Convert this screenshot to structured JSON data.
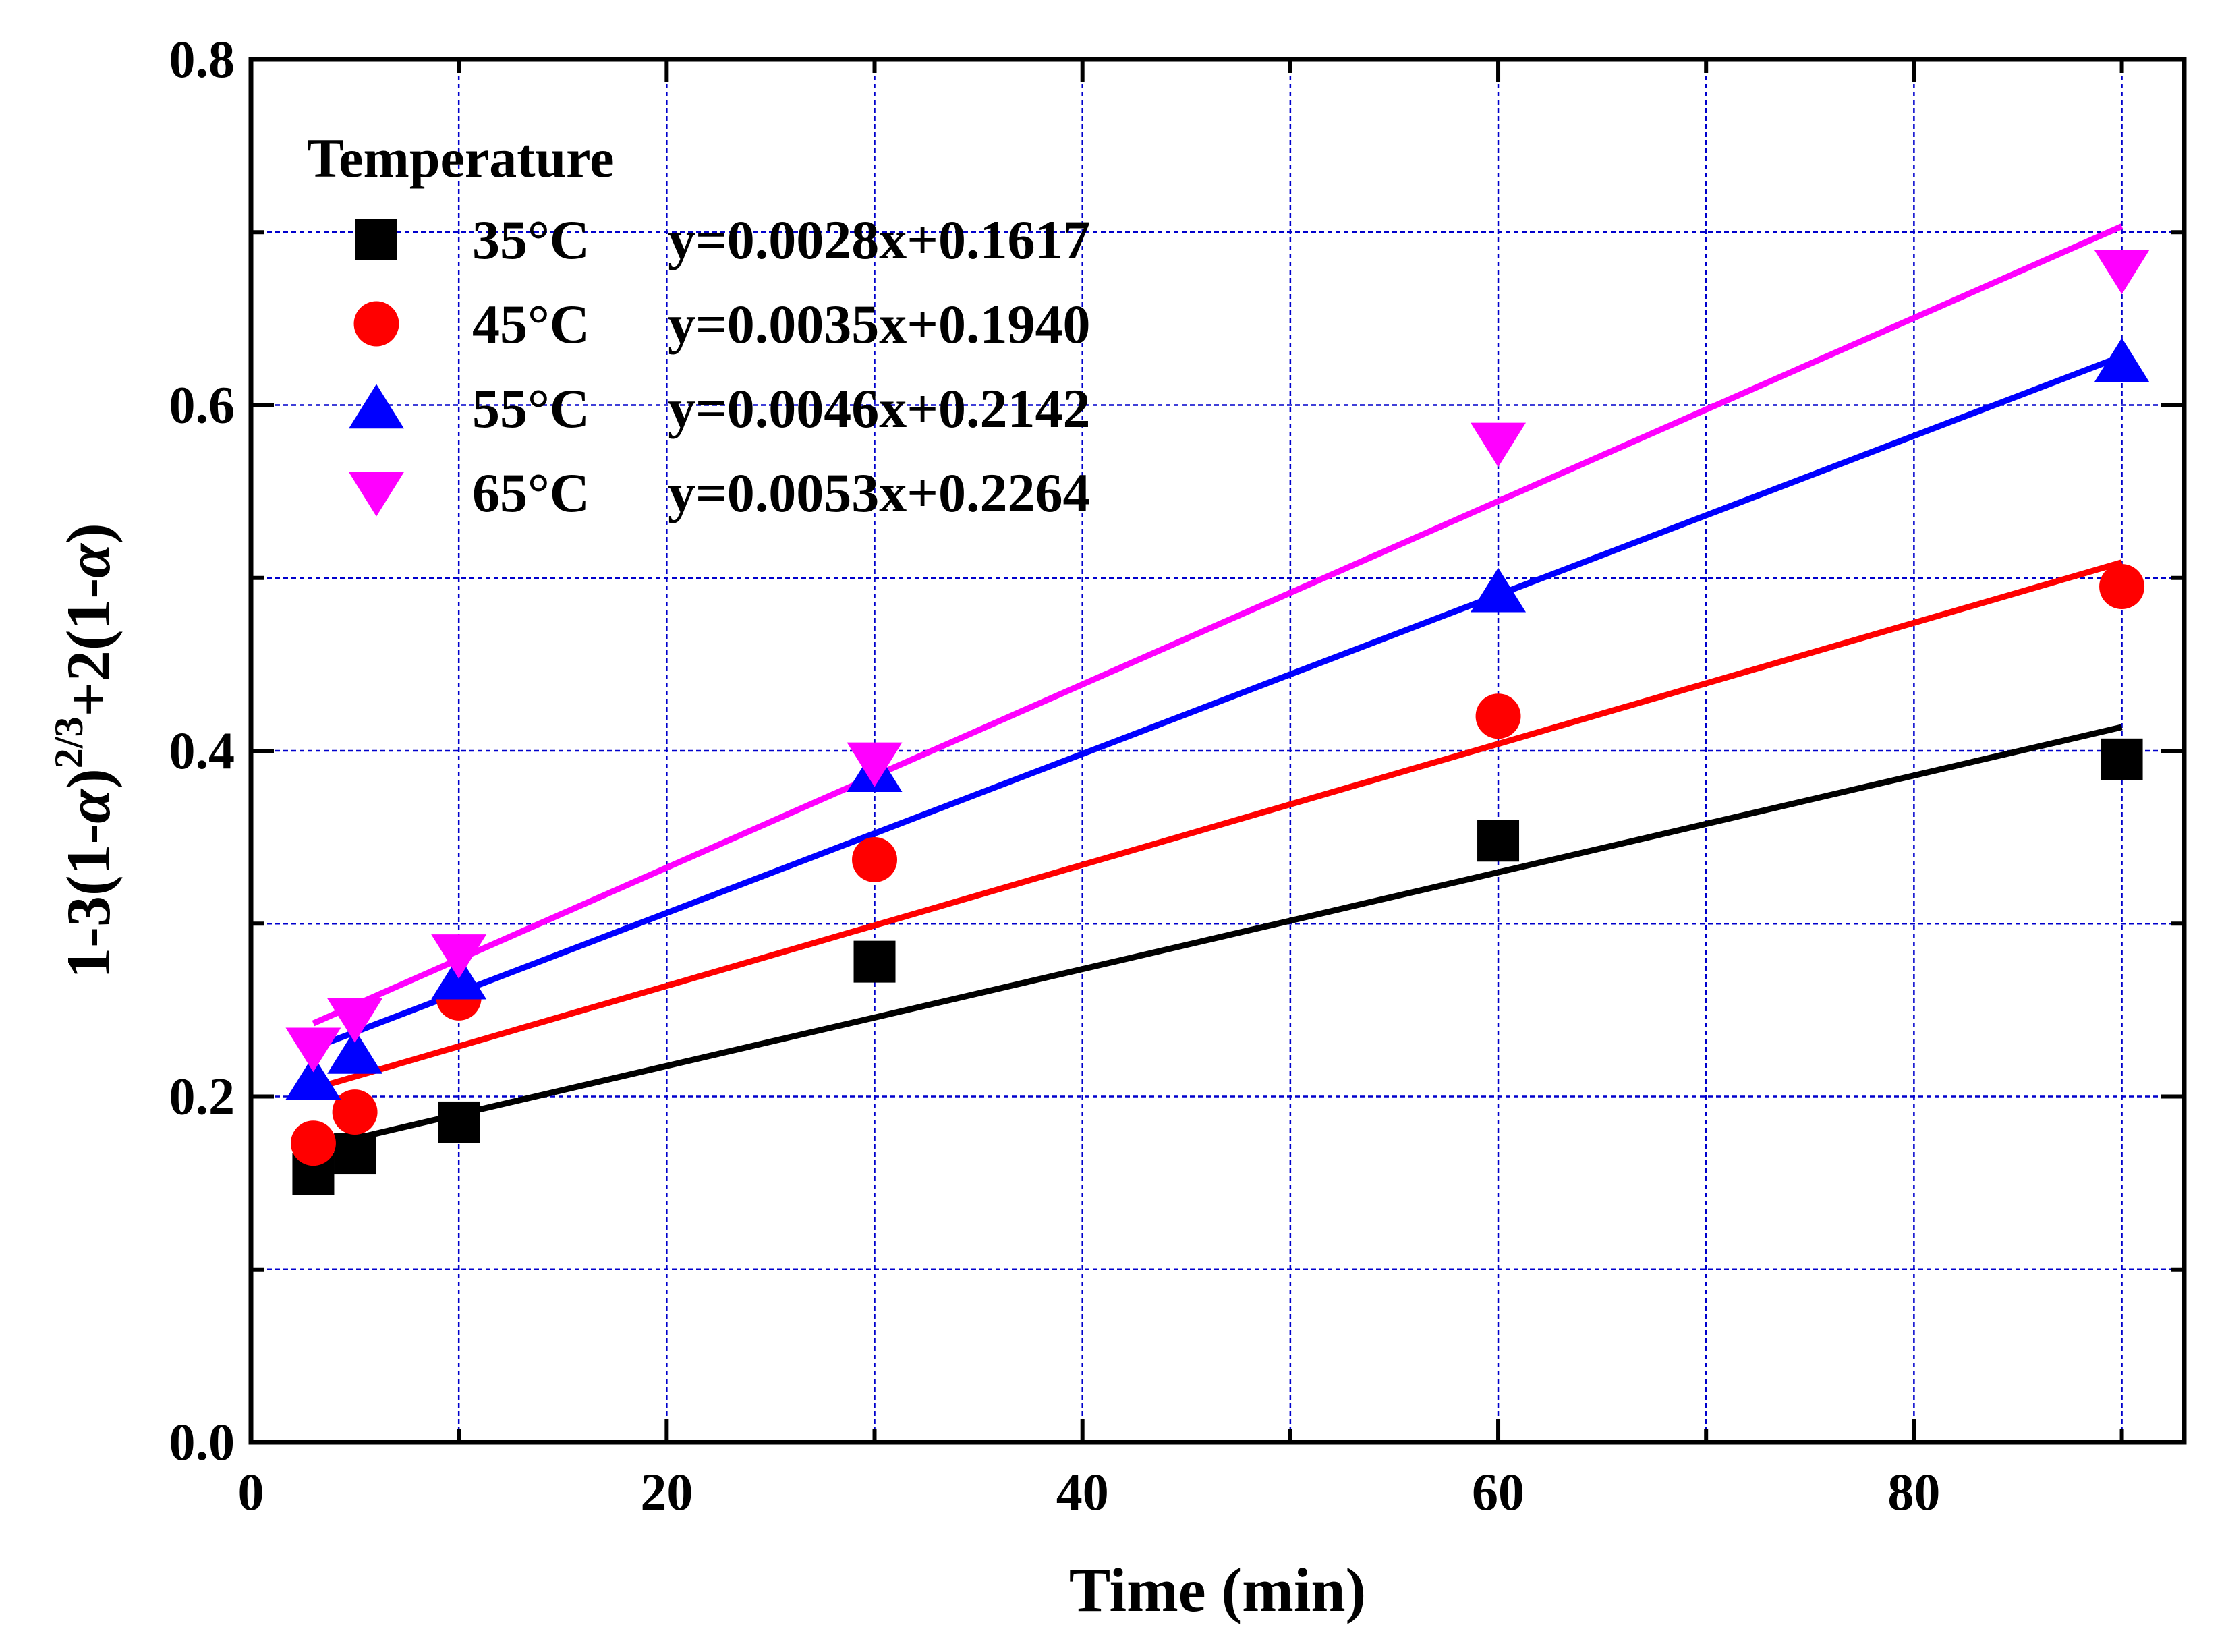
{
  "chart_data": {
    "type": "scatter",
    "title": "",
    "xlabel": "Time (min)",
    "ylabel": {
      "part1": "1-3(1-",
      "alpha1": "α",
      "part2": ")",
      "sup": "2/3",
      "part3": "+2(1-",
      "alpha2": "α",
      "part4": ")"
    },
    "xlim": [
      0,
      93
    ],
    "ylim": [
      0.0,
      0.8
    ],
    "xticks": [
      0,
      20,
      40,
      60,
      80
    ],
    "xtick_labels": [
      "0",
      "20",
      "40",
      "60",
      "80"
    ],
    "yticks": [
      0.0,
      0.2,
      0.4,
      0.6,
      0.8
    ],
    "ytick_labels": [
      "0.0",
      "0.2",
      "0.4",
      "0.6",
      "0.8"
    ],
    "grid": true,
    "grid_color": "#0000cc",
    "legend": {
      "title": "Temperature",
      "position": "top-left"
    },
    "x": [
      3,
      5,
      10,
      30,
      60,
      90
    ],
    "series": [
      {
        "name": "35°C",
        "equation": "y=0.0028x+0.1617",
        "marker": "square",
        "color": "#000000",
        "values": [
          0.155,
          0.167,
          0.185,
          0.278,
          0.348,
          0.395
        ],
        "slope": 0.0028,
        "intercept": 0.1617
      },
      {
        "name": "45°C",
        "equation": "y=0.0035x+0.1940",
        "marker": "circle",
        "color": "#ff0000",
        "values": [
          0.173,
          0.191,
          0.257,
          0.337,
          0.42,
          0.495
        ],
        "slope": 0.0035,
        "intercept": 0.194
      },
      {
        "name": "55°C",
        "equation": "y=0.0046x+0.2142",
        "marker": "triangle-up",
        "color": "#0000ff",
        "values": [
          0.21,
          0.225,
          0.268,
          0.388,
          0.492,
          0.625
        ],
        "slope": 0.0046,
        "intercept": 0.2142
      },
      {
        "name": "65°C",
        "equation": "y=0.0053x+0.2264",
        "marker": "triangle-down",
        "color": "#ff00ff",
        "values": [
          0.228,
          0.245,
          0.282,
          0.393,
          0.578,
          0.678
        ],
        "slope": 0.0053,
        "intercept": 0.2264
      }
    ]
  }
}
